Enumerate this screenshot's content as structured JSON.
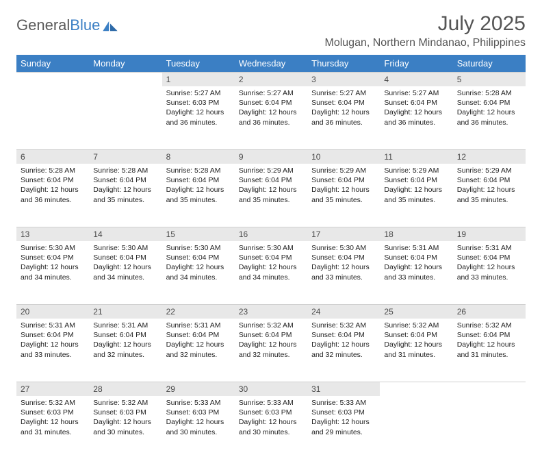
{
  "logo": {
    "word1": "General",
    "word2": "Blue"
  },
  "header": {
    "month_title": "July 2025",
    "location": "Molugan, Northern Mindanao, Philippines"
  },
  "colors": {
    "header_bg": "#3b7fc4",
    "header_text": "#ffffff",
    "daynum_bg": "#e8e8e8",
    "body_text": "#333333",
    "logo_gray": "#5a5a5a",
    "logo_blue": "#3b7fc4"
  },
  "day_headers": [
    "Sunday",
    "Monday",
    "Tuesday",
    "Wednesday",
    "Thursday",
    "Friday",
    "Saturday"
  ],
  "labels": {
    "sunrise": "Sunrise:",
    "sunset": "Sunset:",
    "daylight": "Daylight:"
  },
  "weeks": [
    [
      null,
      null,
      {
        "n": "1",
        "sunrise": "5:27 AM",
        "sunset": "6:03 PM",
        "daylight": "12 hours and 36 minutes."
      },
      {
        "n": "2",
        "sunrise": "5:27 AM",
        "sunset": "6:04 PM",
        "daylight": "12 hours and 36 minutes."
      },
      {
        "n": "3",
        "sunrise": "5:27 AM",
        "sunset": "6:04 PM",
        "daylight": "12 hours and 36 minutes."
      },
      {
        "n": "4",
        "sunrise": "5:27 AM",
        "sunset": "6:04 PM",
        "daylight": "12 hours and 36 minutes."
      },
      {
        "n": "5",
        "sunrise": "5:28 AM",
        "sunset": "6:04 PM",
        "daylight": "12 hours and 36 minutes."
      }
    ],
    [
      {
        "n": "6",
        "sunrise": "5:28 AM",
        "sunset": "6:04 PM",
        "daylight": "12 hours and 36 minutes."
      },
      {
        "n": "7",
        "sunrise": "5:28 AM",
        "sunset": "6:04 PM",
        "daylight": "12 hours and 35 minutes."
      },
      {
        "n": "8",
        "sunrise": "5:28 AM",
        "sunset": "6:04 PM",
        "daylight": "12 hours and 35 minutes."
      },
      {
        "n": "9",
        "sunrise": "5:29 AM",
        "sunset": "6:04 PM",
        "daylight": "12 hours and 35 minutes."
      },
      {
        "n": "10",
        "sunrise": "5:29 AM",
        "sunset": "6:04 PM",
        "daylight": "12 hours and 35 minutes."
      },
      {
        "n": "11",
        "sunrise": "5:29 AM",
        "sunset": "6:04 PM",
        "daylight": "12 hours and 35 minutes."
      },
      {
        "n": "12",
        "sunrise": "5:29 AM",
        "sunset": "6:04 PM",
        "daylight": "12 hours and 35 minutes."
      }
    ],
    [
      {
        "n": "13",
        "sunrise": "5:30 AM",
        "sunset": "6:04 PM",
        "daylight": "12 hours and 34 minutes."
      },
      {
        "n": "14",
        "sunrise": "5:30 AM",
        "sunset": "6:04 PM",
        "daylight": "12 hours and 34 minutes."
      },
      {
        "n": "15",
        "sunrise": "5:30 AM",
        "sunset": "6:04 PM",
        "daylight": "12 hours and 34 minutes."
      },
      {
        "n": "16",
        "sunrise": "5:30 AM",
        "sunset": "6:04 PM",
        "daylight": "12 hours and 34 minutes."
      },
      {
        "n": "17",
        "sunrise": "5:30 AM",
        "sunset": "6:04 PM",
        "daylight": "12 hours and 33 minutes."
      },
      {
        "n": "18",
        "sunrise": "5:31 AM",
        "sunset": "6:04 PM",
        "daylight": "12 hours and 33 minutes."
      },
      {
        "n": "19",
        "sunrise": "5:31 AM",
        "sunset": "6:04 PM",
        "daylight": "12 hours and 33 minutes."
      }
    ],
    [
      {
        "n": "20",
        "sunrise": "5:31 AM",
        "sunset": "6:04 PM",
        "daylight": "12 hours and 33 minutes."
      },
      {
        "n": "21",
        "sunrise": "5:31 AM",
        "sunset": "6:04 PM",
        "daylight": "12 hours and 32 minutes."
      },
      {
        "n": "22",
        "sunrise": "5:31 AM",
        "sunset": "6:04 PM",
        "daylight": "12 hours and 32 minutes."
      },
      {
        "n": "23",
        "sunrise": "5:32 AM",
        "sunset": "6:04 PM",
        "daylight": "12 hours and 32 minutes."
      },
      {
        "n": "24",
        "sunrise": "5:32 AM",
        "sunset": "6:04 PM",
        "daylight": "12 hours and 32 minutes."
      },
      {
        "n": "25",
        "sunrise": "5:32 AM",
        "sunset": "6:04 PM",
        "daylight": "12 hours and 31 minutes."
      },
      {
        "n": "26",
        "sunrise": "5:32 AM",
        "sunset": "6:04 PM",
        "daylight": "12 hours and 31 minutes."
      }
    ],
    [
      {
        "n": "27",
        "sunrise": "5:32 AM",
        "sunset": "6:03 PM",
        "daylight": "12 hours and 31 minutes."
      },
      {
        "n": "28",
        "sunrise": "5:32 AM",
        "sunset": "6:03 PM",
        "daylight": "12 hours and 30 minutes."
      },
      {
        "n": "29",
        "sunrise": "5:33 AM",
        "sunset": "6:03 PM",
        "daylight": "12 hours and 30 minutes."
      },
      {
        "n": "30",
        "sunrise": "5:33 AM",
        "sunset": "6:03 PM",
        "daylight": "12 hours and 30 minutes."
      },
      {
        "n": "31",
        "sunrise": "5:33 AM",
        "sunset": "6:03 PM",
        "daylight": "12 hours and 29 minutes."
      },
      null,
      null
    ]
  ]
}
